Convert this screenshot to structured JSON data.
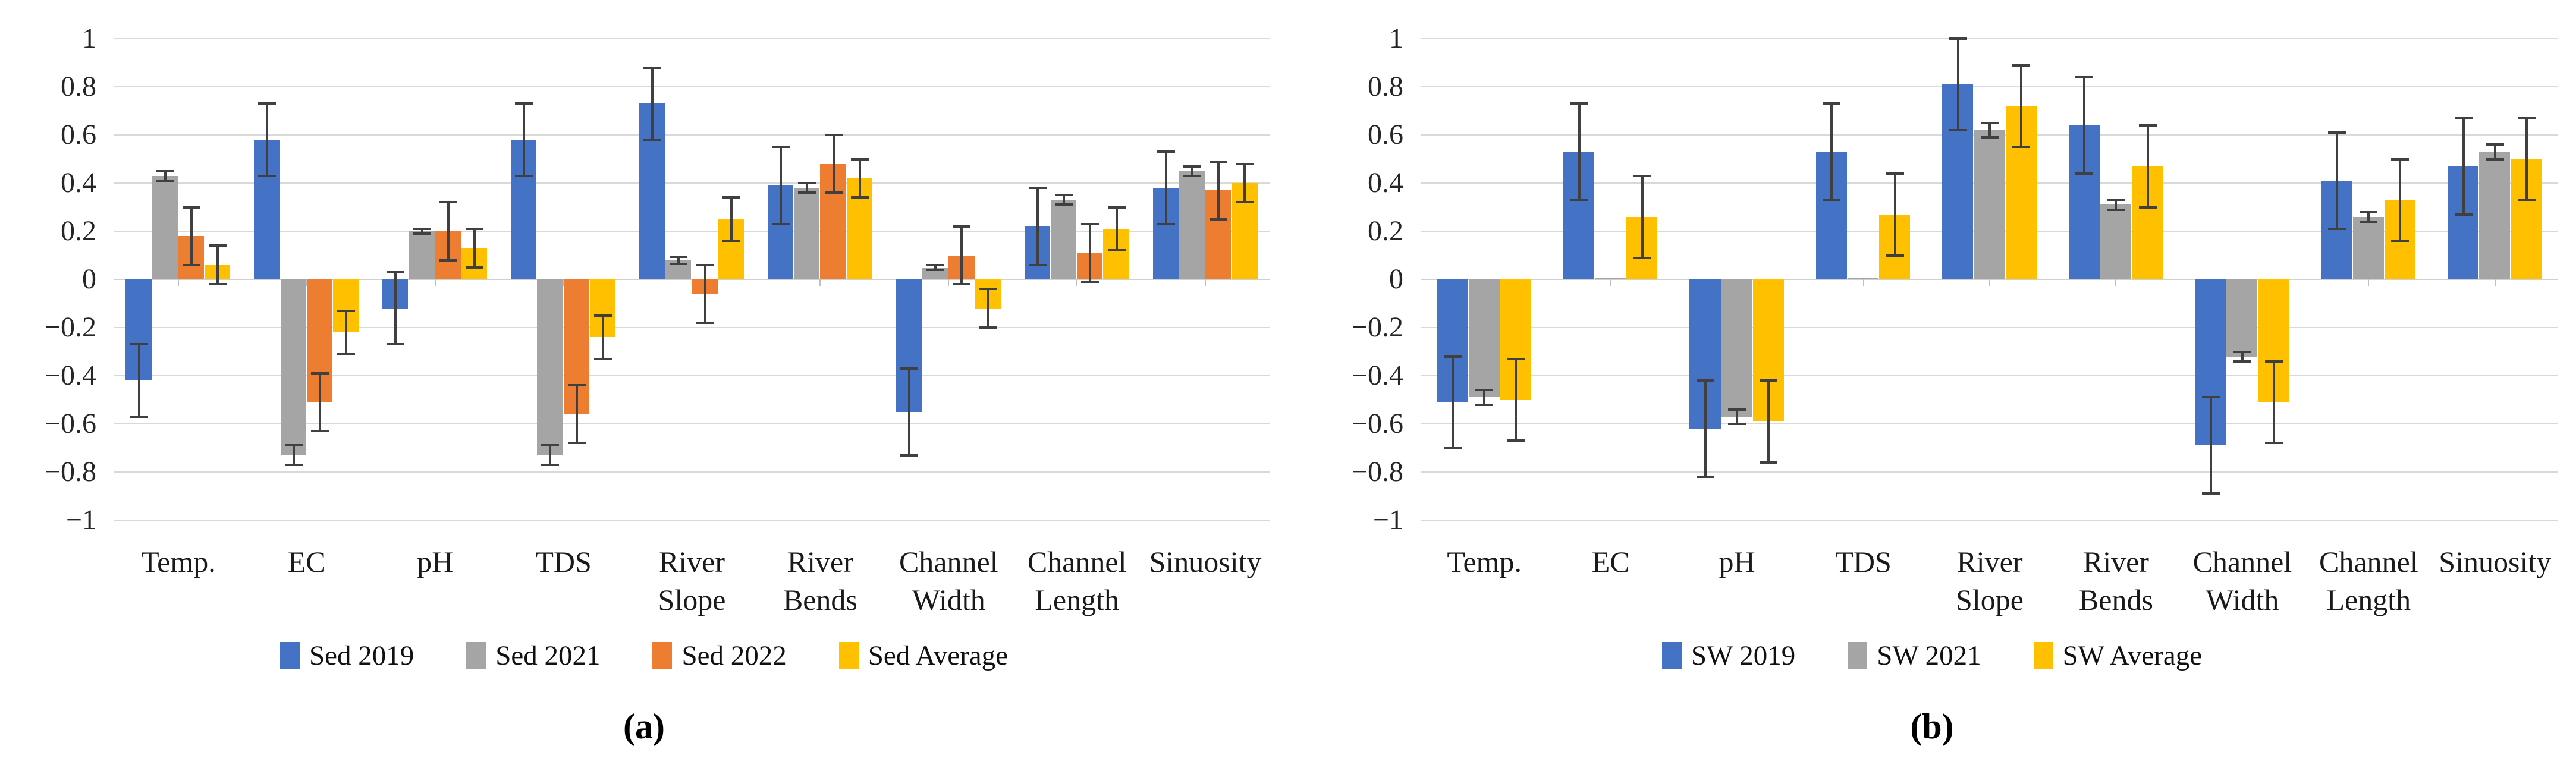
{
  "figure": {
    "background": "#ffffff",
    "gridline_color": "#D9D9D9",
    "error_bar_color": "#404040"
  },
  "chart_data": [
    {
      "id": "a",
      "type": "bar",
      "caption": "(a)",
      "title": "",
      "xlabel": "",
      "ylabel": "",
      "ylim": [
        -1,
        1
      ],
      "ytick_step": 0.2,
      "ytick_labels": [
        "1",
        "0.8",
        "0.6",
        "0.4",
        "0.2",
        "0",
        "−0.2",
        "−0.4",
        "−0.6",
        "−0.8",
        "−1"
      ],
      "grid": true,
      "legend_position": "bottom",
      "error_bars": true,
      "categories": [
        "Temp.",
        "EC",
        "pH",
        "TDS",
        "River\nSlope",
        "River\nBends",
        "Channel\nWidth",
        "Channel\nLength",
        "Sinuosity"
      ],
      "series": [
        {
          "name": "Sed 2019",
          "color": "#4472C4",
          "values": [
            -0.42,
            0.58,
            -0.12,
            0.58,
            0.73,
            0.39,
            -0.55,
            0.22,
            0.38
          ],
          "errors": [
            0.15,
            0.15,
            0.15,
            0.15,
            0.15,
            0.16,
            0.18,
            0.16,
            0.15
          ]
        },
        {
          "name": "Sed 2021",
          "color": "#A5A5A5",
          "values": [
            0.43,
            -0.73,
            0.2,
            -0.73,
            0.08,
            0.38,
            0.05,
            0.33,
            0.45
          ],
          "errors": [
            0.02,
            0.04,
            0.01,
            0.04,
            0.015,
            0.02,
            0.01,
            0.02,
            0.02
          ]
        },
        {
          "name": "Sed 2022",
          "color": "#ED7D31",
          "values": [
            0.18,
            -0.51,
            0.2,
            -0.56,
            -0.06,
            0.48,
            0.1,
            0.11,
            0.37
          ],
          "errors": [
            0.12,
            0.12,
            0.12,
            0.12,
            0.12,
            0.12,
            0.12,
            0.12,
            0.12
          ]
        },
        {
          "name": "Sed Average",
          "color": "#FFC000",
          "values": [
            0.06,
            -0.22,
            0.13,
            -0.24,
            0.25,
            0.42,
            -0.12,
            0.21,
            0.4
          ],
          "errors": [
            0.08,
            0.09,
            0.08,
            0.09,
            0.09,
            0.08,
            0.08,
            0.09,
            0.08
          ]
        }
      ]
    },
    {
      "id": "b",
      "type": "bar",
      "caption": "(b)",
      "title": "",
      "xlabel": "",
      "ylabel": "",
      "ylim": [
        -1,
        1
      ],
      "ytick_step": 0.2,
      "ytick_labels": [
        "1",
        "0.8",
        "0.6",
        "0.4",
        "0.2",
        "0",
        "−0.2",
        "−0.4",
        "−0.6",
        "−0.8",
        "−1"
      ],
      "grid": true,
      "legend_position": "bottom",
      "error_bars": true,
      "categories": [
        "Temp.",
        "EC",
        "pH",
        "TDS",
        "River\nSlope",
        "River\nBends",
        "Channel\nWidth",
        "Channel\nLength",
        "Sinuosity"
      ],
      "series": [
        {
          "name": "SW 2019",
          "color": "#4472C4",
          "values": [
            -0.51,
            0.53,
            -0.62,
            0.53,
            0.81,
            0.64,
            -0.69,
            0.41,
            0.47
          ],
          "errors": [
            0.19,
            0.2,
            0.2,
            0.2,
            0.19,
            0.2,
            0.2,
            0.2,
            0.2
          ]
        },
        {
          "name": "SW 2021",
          "color": "#A5A5A5",
          "values": [
            -0.49,
            0.005,
            -0.57,
            0.005,
            0.62,
            0.31,
            -0.32,
            0.26,
            0.53
          ],
          "errors": [
            0.03,
            0,
            0.03,
            0,
            0.03,
            0.02,
            0.02,
            0.02,
            0.03
          ]
        },
        {
          "name": "SW Average",
          "color": "#FFC000",
          "values": [
            -0.5,
            0.26,
            -0.59,
            0.27,
            0.72,
            0.47,
            -0.51,
            0.33,
            0.5
          ],
          "errors": [
            0.17,
            0.17,
            0.17,
            0.17,
            0.17,
            0.17,
            0.17,
            0.17,
            0.17
          ]
        }
      ]
    }
  ]
}
